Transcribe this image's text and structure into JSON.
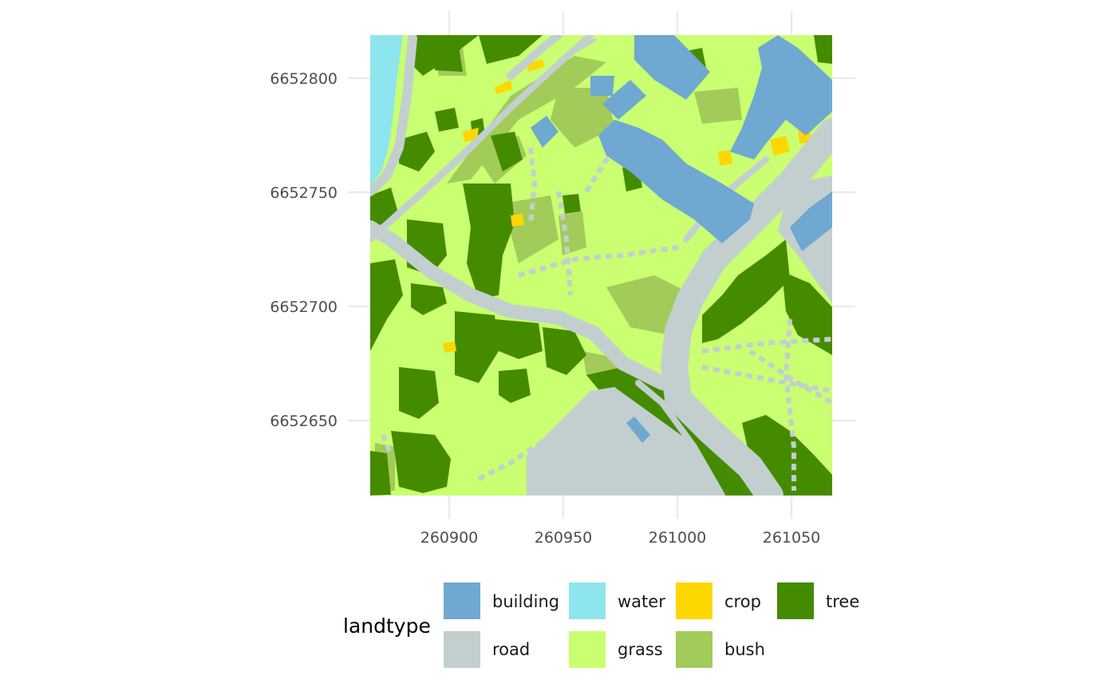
{
  "map": {
    "x_axis": {
      "ticks": [
        "260900",
        "260950",
        "261000",
        "261050"
      ]
    },
    "y_axis": {
      "ticks": [
        "6652800",
        "6652750",
        "6652700",
        "6652650"
      ]
    },
    "extent": {
      "xmin": 260866,
      "xmax": 261067,
      "ymin": 6652619,
      "ymax": 6652819
    },
    "panel_grid": true,
    "legend": {
      "title": "landtype",
      "placement": "bottom",
      "items": [
        {
          "key": "building",
          "label": "building",
          "color": "#6fa8d0"
        },
        {
          "key": "water",
          "label": "water",
          "color": "#8fe5ee"
        },
        {
          "key": "crop",
          "label": "crop",
          "color": "#ffd700"
        },
        {
          "key": "tree",
          "label": "tree",
          "color": "#458b00"
        },
        {
          "key": "road",
          "label": "road",
          "color": "#c3cfcf"
        },
        {
          "key": "grass",
          "label": "grass",
          "color": "#c9ff70"
        },
        {
          "key": "bush",
          "label": "bush",
          "color": "#a2cb5a"
        }
      ]
    }
  }
}
